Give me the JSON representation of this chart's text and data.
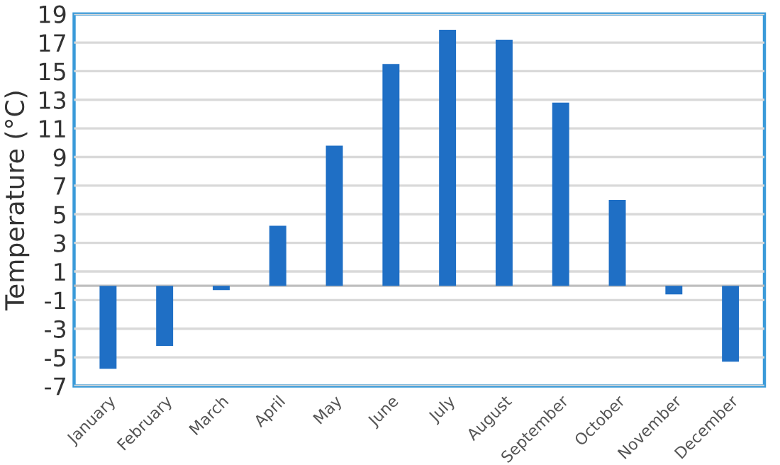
{
  "chart_data": {
    "type": "bar",
    "ylabel": "Temperature (°C)",
    "categories": [
      "January",
      "February",
      "March",
      "April",
      "May",
      "June",
      "July",
      "August",
      "September",
      "October",
      "November",
      "December"
    ],
    "values": [
      -5.8,
      -4.2,
      -0.3,
      4.2,
      9.8,
      15.5,
      17.9,
      17.2,
      12.8,
      6.0,
      -0.6,
      -5.3
    ],
    "color": "#1f6fc5",
    "ylim": [
      -7,
      19
    ],
    "yticks": [
      -7,
      -5,
      -3,
      -1,
      1,
      3,
      5,
      7,
      9,
      11,
      13,
      15,
      17,
      19
    ],
    "grid": "y"
  }
}
